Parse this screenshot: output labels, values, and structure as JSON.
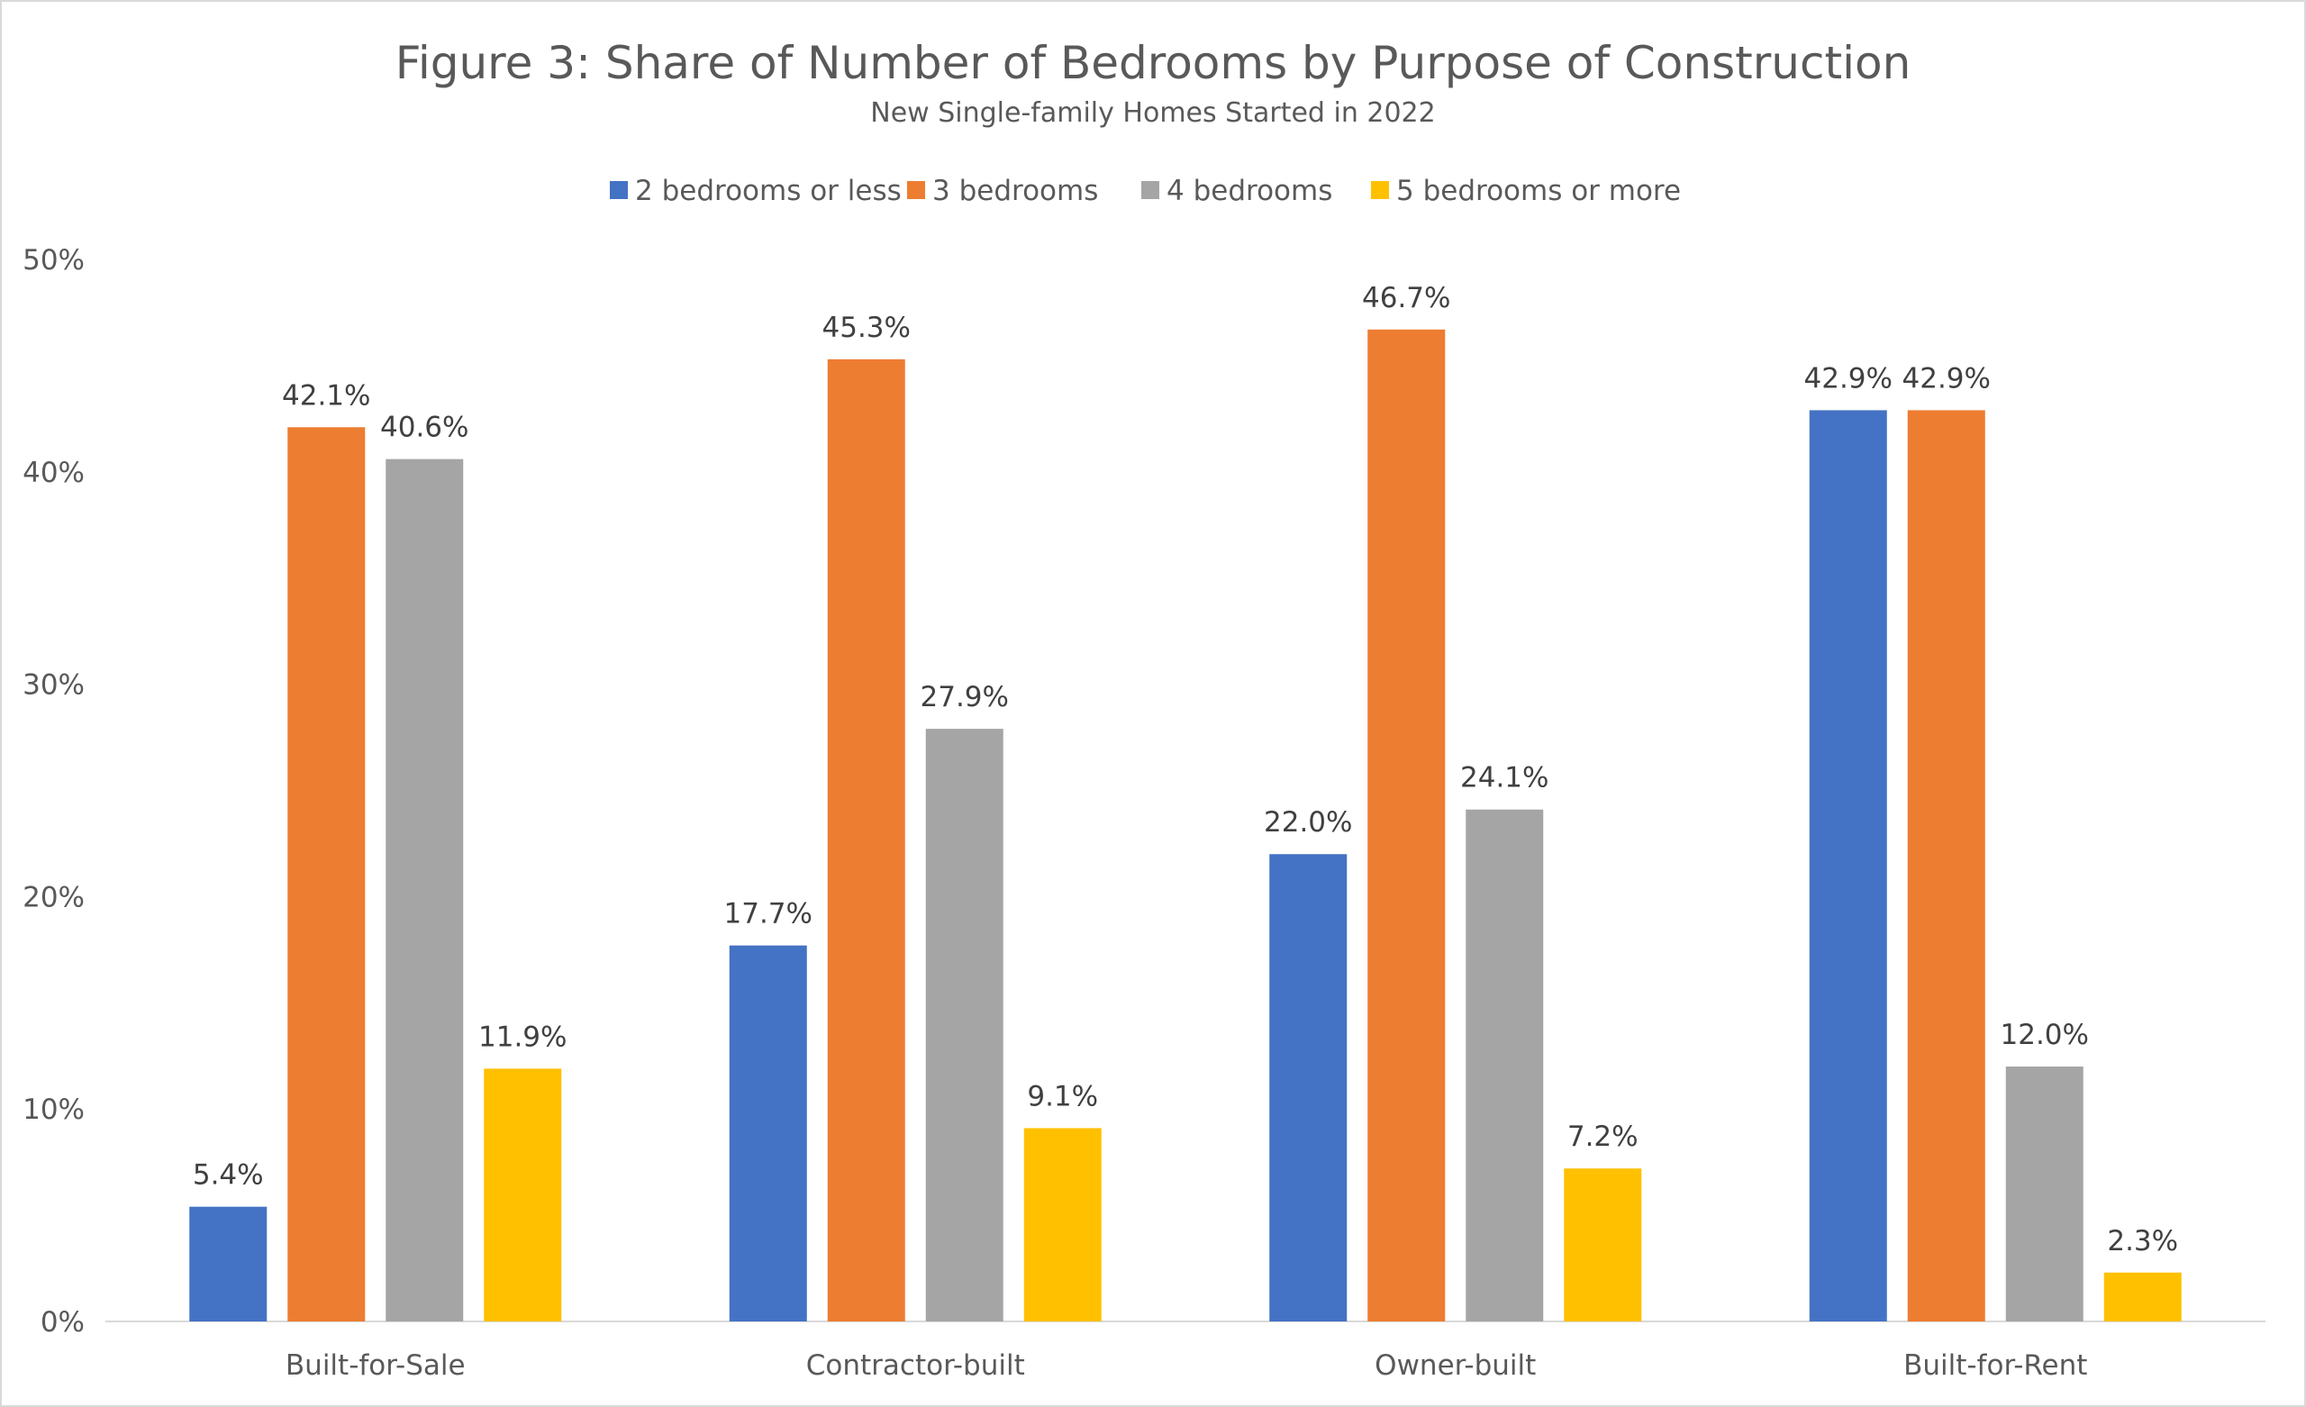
{
  "chart_data": {
    "type": "bar",
    "title": "Figure 3: Share of Number of Bedrooms by Purpose of Construction",
    "subtitle": "New Single-family Homes Started in 2022",
    "xlabel": "",
    "ylabel": "",
    "categories": [
      "Built-for-Sale",
      "Contractor-built",
      "Owner-built",
      "Built-for-Rent"
    ],
    "series": [
      {
        "name": "2 bedrooms or less",
        "color": "#4472C4",
        "values": [
          5.4,
          17.7,
          22.0,
          42.9
        ],
        "labels": [
          "5.4%",
          "17.7%",
          "22.0%",
          "42.9%"
        ]
      },
      {
        "name": "3 bedrooms",
        "color": "#ED7D31",
        "values": [
          42.1,
          45.3,
          46.7,
          42.9
        ],
        "labels": [
          "42.1%",
          "45.3%",
          "46.7%",
          "42.9%"
        ]
      },
      {
        "name": "4 bedrooms",
        "color": "#A5A5A5",
        "values": [
          40.6,
          27.9,
          24.1,
          12.0
        ],
        "labels": [
          "40.6%",
          "27.9%",
          "24.1%",
          "12.0%"
        ]
      },
      {
        "name": "5 bedrooms or more",
        "color": "#FFC000",
        "values": [
          11.9,
          9.1,
          7.2,
          2.3
        ],
        "labels": [
          "11.9%",
          "9.1%",
          "7.2%",
          "2.3%"
        ]
      }
    ],
    "ylim": [
      0,
      50
    ],
    "yticks": [
      "0%",
      "10%",
      "20%",
      "30%",
      "40%",
      "50%"
    ],
    "grid": false,
    "legend_position": "top"
  }
}
